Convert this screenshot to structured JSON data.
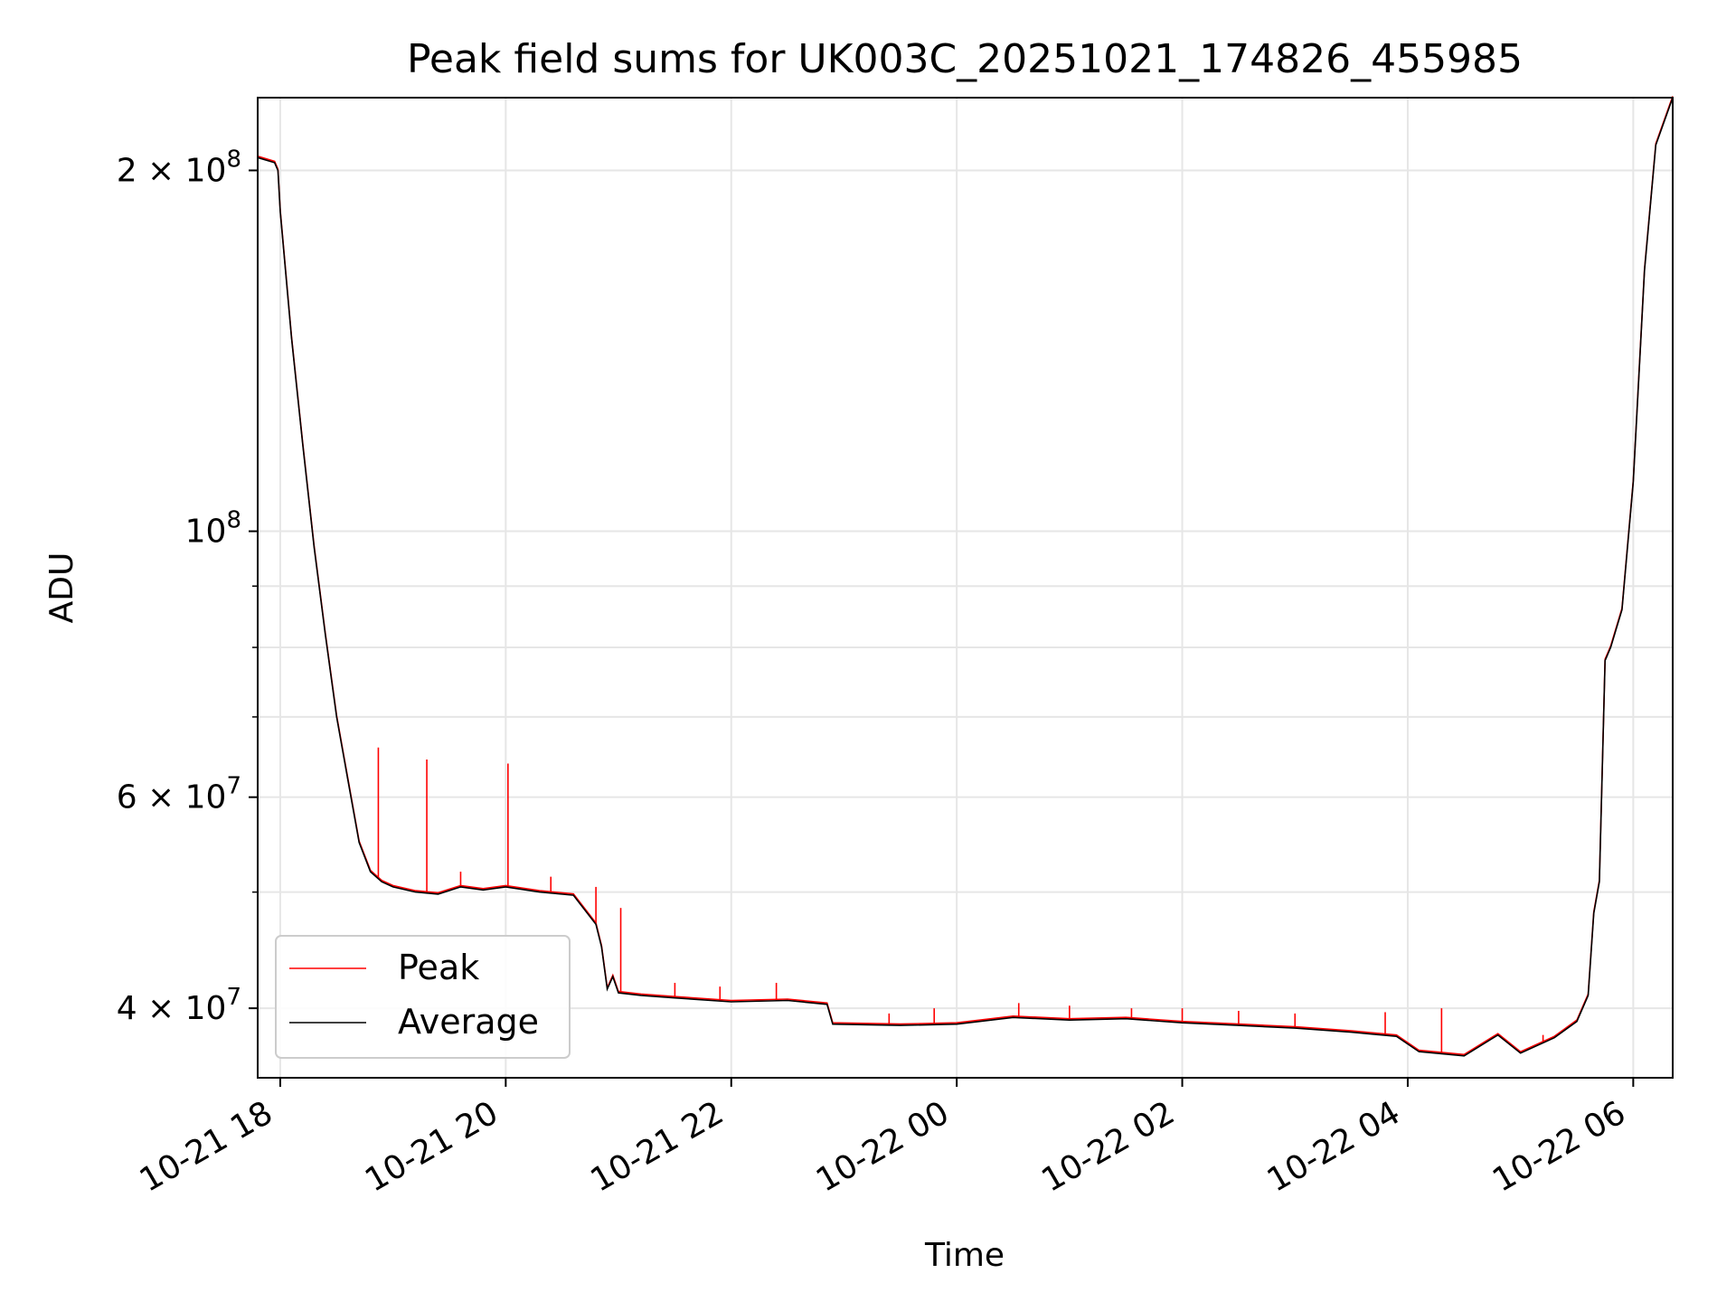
{
  "chart_data": {
    "type": "line",
    "title": "Peak field sums for UK003C_20251021_174826_455985",
    "xlabel": "Time",
    "ylabel": "ADU",
    "yscale": "log",
    "ylim": [
      35000000,
      230000000
    ],
    "xlim_hours": [
      17.8,
      30.35
    ],
    "x_tick_labels": [
      {
        "label": "10-21 18",
        "hour": 18
      },
      {
        "label": "10-21 20",
        "hour": 20
      },
      {
        "label": "10-21 22",
        "hour": 22
      },
      {
        "label": "10-22 00",
        "hour": 24
      },
      {
        "label": "10-22 02",
        "hour": 26
      },
      {
        "label": "10-22 04",
        "hour": 28
      },
      {
        "label": "10-22 06",
        "hour": 30
      }
    ],
    "y_major_ticks": [
      {
        "value": 40000000,
        "mantissa": "4 × 10",
        "exp": "7"
      },
      {
        "value": 60000000,
        "mantissa": "6 × 10",
        "exp": "7"
      },
      {
        "value": 100000000,
        "mantissa": "10",
        "exp": "8"
      },
      {
        "value": 200000000,
        "mantissa": "2 × 10",
        "exp": "8"
      }
    ],
    "y_minor_ticks": [
      50000000,
      70000000,
      80000000,
      90000000
    ],
    "grid": true,
    "legend_position": "lower-left",
    "series": [
      {
        "name": "Average",
        "color": "#000000",
        "x_hours": [
          17.8,
          17.95,
          17.98,
          18.0,
          18.1,
          18.2,
          18.3,
          18.4,
          18.5,
          18.6,
          18.7,
          18.8,
          18.9,
          19.0,
          19.2,
          19.4,
          19.6,
          19.8,
          20.0,
          20.3,
          20.6,
          20.8,
          20.85,
          20.9,
          20.95,
          21.0,
          21.2,
          21.5,
          22.0,
          22.5,
          22.85,
          22.9,
          23.5,
          24.0,
          24.5,
          25.0,
          25.5,
          26.0,
          26.5,
          27.0,
          27.5,
          27.9,
          28.1,
          28.5,
          28.8,
          29.0,
          29.3,
          29.5,
          29.6,
          29.65,
          29.7,
          29.75,
          29.8,
          29.9,
          30.0,
          30.1,
          30.2,
          30.35
        ],
        "values": [
          205000000,
          203000000,
          200000000,
          185000000,
          145000000,
          118000000,
          97000000,
          82000000,
          70000000,
          62000000,
          55000000,
          52000000,
          51000000,
          50500000,
          50000000,
          49800000,
          50500000,
          50200000,
          50500000,
          50000000,
          49700000,
          47000000,
          45000000,
          41500000,
          42500000,
          41200000,
          41000000,
          40800000,
          40500000,
          40600000,
          40300000,
          38800000,
          38700000,
          38800000,
          39300000,
          39100000,
          39200000,
          38900000,
          38700000,
          38500000,
          38200000,
          37900000,
          36800000,
          36500000,
          38000000,
          36700000,
          37800000,
          39000000,
          41000000,
          48000000,
          51000000,
          78000000,
          80000000,
          86000000,
          110000000,
          165000000,
          210000000,
          230000000
        ]
      },
      {
        "name": "Peak",
        "color": "#ff0000",
        "spikes": [
          [
            18.87,
            66000000
          ],
          [
            19.3,
            64500000
          ],
          [
            19.6,
            52000000
          ],
          [
            20.02,
            64000000
          ],
          [
            20.4,
            51500000
          ],
          [
            20.8,
            50500000
          ],
          [
            21.02,
            48500000
          ],
          [
            21.5,
            42000000
          ],
          [
            21.9,
            41700000
          ],
          [
            22.4,
            42000000
          ],
          [
            23.4,
            39600000
          ],
          [
            23.8,
            40000000
          ],
          [
            24.55,
            40400000
          ],
          [
            25.0,
            40200000
          ],
          [
            25.55,
            40000000
          ],
          [
            26.0,
            40000000
          ],
          [
            26.5,
            39800000
          ],
          [
            27.0,
            39600000
          ],
          [
            27.8,
            39700000
          ],
          [
            28.3,
            40000000
          ],
          [
            29.2,
            38000000
          ]
        ]
      }
    ]
  }
}
